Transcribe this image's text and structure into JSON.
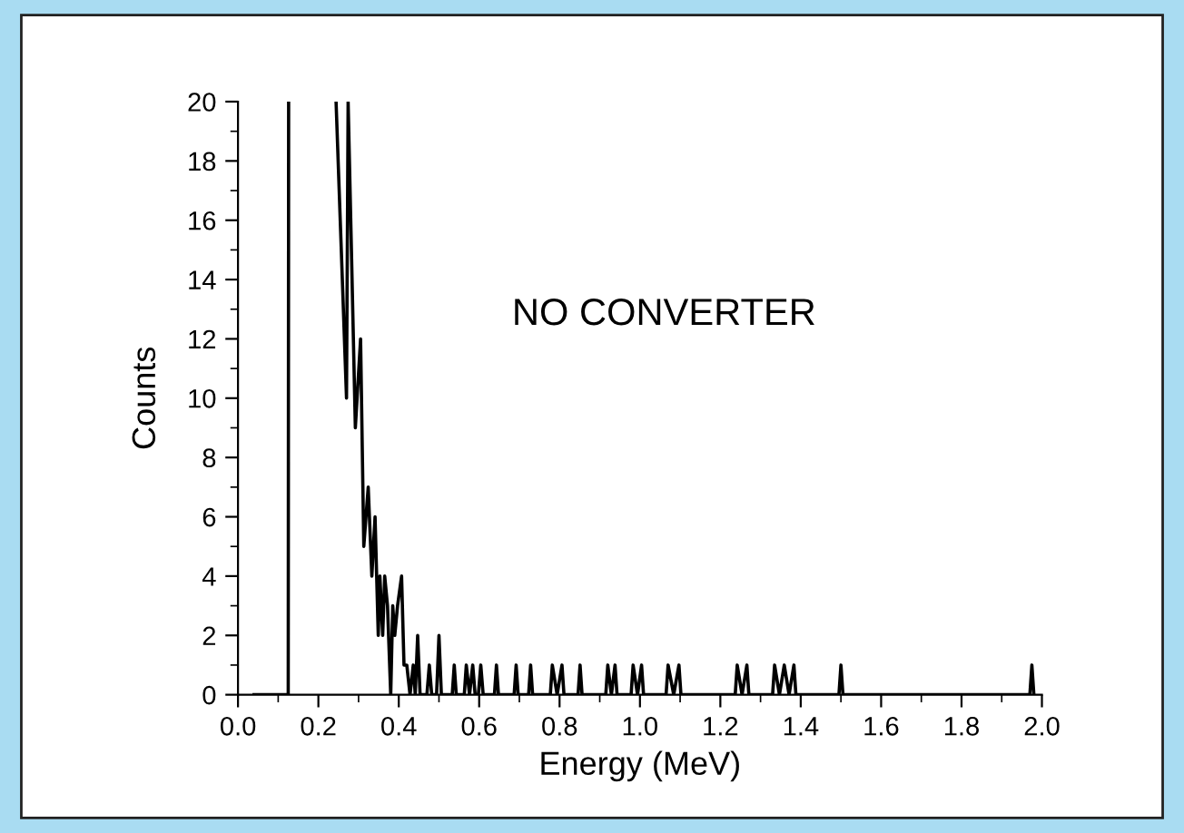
{
  "chart_data": {
    "type": "line",
    "xlabel": "Energy (MeV)",
    "ylabel": "Counts",
    "annotations": [
      "NO CONVERTER"
    ],
    "xlim": [
      0.0,
      2.0
    ],
    "xticks": [
      {
        "value": 0.0,
        "label": "0.0"
      },
      0.2,
      0.4,
      0.6,
      0.8,
      {
        "value": 1.0,
        "label": "1.0"
      },
      1.2,
      1.4,
      1.6,
      1.8,
      {
        "value": 2.0,
        "label": "2.0"
      }
    ],
    "ylim": [
      0,
      20
    ],
    "yticks": [
      0,
      2,
      4,
      6,
      8,
      10,
      12,
      14,
      16,
      18,
      20
    ],
    "grid": false,
    "marker": "none",
    "line_style": "solid",
    "series": [
      {
        "color": "#000000",
        "x": [
          0.04,
          0.12,
          0.125,
          0.126,
          0.18,
          0.244,
          0.27,
          0.274,
          0.292,
          0.305,
          0.313,
          0.324,
          0.333,
          0.341,
          0.349,
          0.353,
          0.36,
          0.365,
          0.372,
          0.38,
          0.385,
          0.39,
          0.397,
          0.407,
          0.413,
          0.42,
          0.428,
          0.436,
          0.441,
          0.447,
          0.453,
          0.47,
          0.476,
          0.482,
          0.494,
          0.5,
          0.506,
          0.533,
          0.538,
          0.543,
          0.563,
          0.568,
          0.576,
          0.584,
          0.59,
          0.598,
          0.604,
          0.61,
          0.638,
          0.643,
          0.648,
          0.687,
          0.692,
          0.697,
          0.723,
          0.728,
          0.733,
          0.777,
          0.782,
          0.794,
          0.806,
          0.811,
          0.846,
          0.851,
          0.856,
          0.915,
          0.92,
          0.929,
          0.938,
          0.943,
          0.978,
          0.983,
          0.994,
          1.004,
          1.009,
          1.065,
          1.07,
          1.084,
          1.097,
          1.102,
          1.237,
          1.242,
          1.254,
          1.266,
          1.271,
          1.33,
          1.335,
          1.347,
          1.359,
          1.371,
          1.383,
          1.388,
          1.495,
          1.5,
          1.505,
          1.97,
          1.975,
          1.98
        ],
        "values": [
          0,
          0,
          0,
          20,
          null,
          20,
          10,
          20,
          9,
          12,
          5,
          7,
          4,
          6,
          2,
          4,
          2,
          4,
          3,
          0,
          3,
          2,
          3,
          4,
          1,
          1,
          0,
          1,
          0,
          2,
          0,
          0,
          1,
          0,
          0,
          2,
          0,
          0,
          1,
          0,
          0,
          1,
          0,
          1,
          0,
          0,
          1,
          0,
          0,
          1,
          0,
          0,
          1,
          0,
          0,
          1,
          0,
          0,
          1,
          0,
          1,
          0,
          0,
          1,
          0,
          0,
          1,
          0,
          1,
          0,
          0,
          1,
          0,
          1,
          0,
          0,
          1,
          0,
          1,
          0,
          0,
          1,
          0,
          1,
          0,
          0,
          1,
          0,
          1,
          0,
          1,
          0,
          0,
          1,
          0,
          0,
          1,
          0
        ]
      }
    ]
  }
}
